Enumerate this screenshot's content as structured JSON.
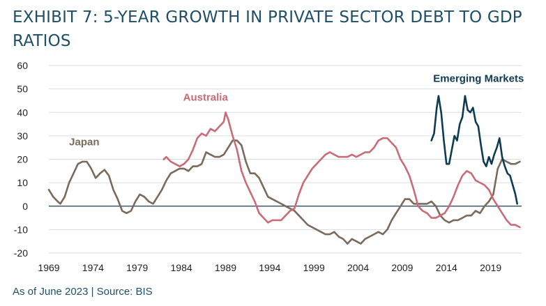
{
  "title": "EXHIBIT 7: 5-YEAR GROWTH IN PRIVATE SECTOR DEBT TO GDP RATIOS",
  "footnote": "As of June 2023 | Source: BIS",
  "chart_data": {
    "type": "line",
    "title": "EXHIBIT 7: 5-YEAR GROWTH IN PRIVATE SECTOR DEBT TO GDP RATIOS",
    "xlabel": "",
    "ylabel": "",
    "xlim": [
      1969,
      2022.5
    ],
    "ylim": [
      -20,
      60
    ],
    "x_ticks": [
      "1969",
      "1974",
      "1979",
      "1984",
      "1989",
      "1994",
      "1999",
      "2004",
      "2009",
      "2014",
      "2019"
    ],
    "y_ticks": [
      "60",
      "50",
      "40",
      "30",
      "20",
      "10",
      "0",
      "-10",
      "-20"
    ],
    "grid": "horizontal",
    "legend": "direct labels on lines",
    "series": [
      {
        "name": "Japan",
        "color": "#7a6a5c",
        "points": [
          [
            1969,
            7
          ],
          [
            1969.5,
            4
          ],
          [
            1970,
            2
          ],
          [
            1970.3,
            1
          ],
          [
            1970.8,
            4
          ],
          [
            1971.3,
            10
          ],
          [
            1971.8,
            14
          ],
          [
            1972.3,
            18
          ],
          [
            1972.8,
            19
          ],
          [
            1973.3,
            19
          ],
          [
            1973.8,
            16
          ],
          [
            1974.3,
            12
          ],
          [
            1974.8,
            14
          ],
          [
            1975.3,
            15.5
          ],
          [
            1975.8,
            13
          ],
          [
            1976.3,
            7
          ],
          [
            1976.8,
            3
          ],
          [
            1977.3,
            -2
          ],
          [
            1977.8,
            -3
          ],
          [
            1978.3,
            -2
          ],
          [
            1978.8,
            2
          ],
          [
            1979.3,
            5
          ],
          [
            1979.8,
            4
          ],
          [
            1980.3,
            2
          ],
          [
            1980.8,
            1
          ],
          [
            1981.3,
            4
          ],
          [
            1981.8,
            7
          ],
          [
            1982.3,
            11
          ],
          [
            1982.8,
            14
          ],
          [
            1983.3,
            15
          ],
          [
            1983.8,
            16
          ],
          [
            1984.3,
            16
          ],
          [
            1984.8,
            15
          ],
          [
            1985.3,
            17
          ],
          [
            1985.8,
            17
          ],
          [
            1986.3,
            18
          ],
          [
            1986.8,
            23
          ],
          [
            1987.3,
            22
          ],
          [
            1987.8,
            21
          ],
          [
            1988.3,
            21
          ],
          [
            1988.8,
            22
          ],
          [
            1989.3,
            25
          ],
          [
            1989.8,
            28
          ],
          [
            1990.3,
            28
          ],
          [
            1990.8,
            26
          ],
          [
            1991.3,
            19
          ],
          [
            1991.8,
            14
          ],
          [
            1992.3,
            14
          ],
          [
            1992.8,
            12
          ],
          [
            1993.3,
            8
          ],
          [
            1993.8,
            4
          ],
          [
            1994.3,
            3
          ],
          [
            1994.8,
            2
          ],
          [
            1995.3,
            1
          ],
          [
            1995.8,
            0
          ],
          [
            1996.3,
            -1
          ],
          [
            1996.8,
            -2
          ],
          [
            1997.3,
            -4
          ],
          [
            1997.8,
            -6
          ],
          [
            1998.3,
            -8
          ],
          [
            1998.8,
            -9
          ],
          [
            1999.3,
            -10
          ],
          [
            1999.8,
            -11
          ],
          [
            2000.3,
            -12
          ],
          [
            2000.8,
            -12
          ],
          [
            2001.3,
            -11
          ],
          [
            2001.8,
            -13
          ],
          [
            2002.3,
            -14
          ],
          [
            2002.8,
            -16
          ],
          [
            2003.3,
            -14
          ],
          [
            2003.8,
            -15
          ],
          [
            2004.3,
            -16
          ],
          [
            2004.8,
            -14
          ],
          [
            2005.3,
            -13
          ],
          [
            2005.8,
            -12
          ],
          [
            2006.3,
            -11
          ],
          [
            2006.8,
            -12
          ],
          [
            2007.3,
            -10
          ],
          [
            2007.8,
            -6
          ],
          [
            2008.3,
            -3
          ],
          [
            2008.8,
            0
          ],
          [
            2009.3,
            3
          ],
          [
            2009.8,
            3
          ],
          [
            2010.3,
            1
          ],
          [
            2010.8,
            1
          ],
          [
            2011.3,
            1
          ],
          [
            2011.8,
            1
          ],
          [
            2012.3,
            2
          ],
          [
            2012.8,
            0
          ],
          [
            2013.3,
            -4
          ],
          [
            2013.8,
            -6
          ],
          [
            2014.3,
            -7
          ],
          [
            2014.8,
            -6
          ],
          [
            2015.3,
            -6
          ],
          [
            2015.8,
            -5
          ],
          [
            2016.3,
            -4
          ],
          [
            2016.8,
            -4
          ],
          [
            2017.3,
            -2
          ],
          [
            2017.8,
            -3
          ],
          [
            2018.3,
            0
          ],
          [
            2018.8,
            2
          ],
          [
            2019.3,
            5
          ],
          [
            2019.8,
            16
          ],
          [
            2020.3,
            20
          ],
          [
            2020.8,
            19
          ],
          [
            2021.3,
            18
          ],
          [
            2021.8,
            18
          ],
          [
            2022.3,
            19
          ]
        ]
      },
      {
        "name": "Australia",
        "color": "#c96b78",
        "points": [
          [
            1982,
            20
          ],
          [
            1982.3,
            21
          ],
          [
            1982.8,
            19
          ],
          [
            1983.3,
            18
          ],
          [
            1983.8,
            17
          ],
          [
            1984.3,
            18
          ],
          [
            1984.8,
            20
          ],
          [
            1985.3,
            24
          ],
          [
            1985.8,
            29
          ],
          [
            1986.3,
            31
          ],
          [
            1986.8,
            30
          ],
          [
            1987.3,
            33
          ],
          [
            1987.8,
            32
          ],
          [
            1988.3,
            34
          ],
          [
            1988.8,
            36
          ],
          [
            1989,
            40
          ],
          [
            1989.3,
            37
          ],
          [
            1989.8,
            30
          ],
          [
            1990.3,
            24
          ],
          [
            1990.8,
            15
          ],
          [
            1991.3,
            10
          ],
          [
            1991.8,
            6
          ],
          [
            1992.3,
            2
          ],
          [
            1992.8,
            -3
          ],
          [
            1993.3,
            -5
          ],
          [
            1993.8,
            -7
          ],
          [
            1994.3,
            -6
          ],
          [
            1994.8,
            -6
          ],
          [
            1995.3,
            -6
          ],
          [
            1995.8,
            -4
          ],
          [
            1996.3,
            -2
          ],
          [
            1996.8,
            -1
          ],
          [
            1997.3,
            5
          ],
          [
            1997.8,
            10
          ],
          [
            1998.3,
            13
          ],
          [
            1998.8,
            16
          ],
          [
            1999.3,
            18
          ],
          [
            1999.8,
            20
          ],
          [
            2000.3,
            22
          ],
          [
            2000.8,
            23
          ],
          [
            2001.3,
            22
          ],
          [
            2001.8,
            21
          ],
          [
            2002.3,
            21
          ],
          [
            2002.8,
            21
          ],
          [
            2003.3,
            22
          ],
          [
            2003.8,
            21
          ],
          [
            2004.3,
            22
          ],
          [
            2004.8,
            23
          ],
          [
            2005.3,
            23
          ],
          [
            2005.8,
            25
          ],
          [
            2006.3,
            28
          ],
          [
            2006.8,
            29
          ],
          [
            2007.3,
            29
          ],
          [
            2007.8,
            27
          ],
          [
            2008.3,
            25
          ],
          [
            2008.8,
            20
          ],
          [
            2009.3,
            17
          ],
          [
            2009.8,
            13
          ],
          [
            2010.3,
            7
          ],
          [
            2010.8,
            0
          ],
          [
            2011.3,
            -2
          ],
          [
            2011.8,
            -3
          ],
          [
            2012.3,
            -5
          ],
          [
            2012.8,
            -5
          ],
          [
            2013.3,
            -4
          ],
          [
            2013.8,
            -3
          ],
          [
            2014.3,
            0
          ],
          [
            2014.8,
            4
          ],
          [
            2015.3,
            9
          ],
          [
            2015.8,
            13
          ],
          [
            2016.3,
            15
          ],
          [
            2016.8,
            14
          ],
          [
            2017.3,
            11
          ],
          [
            2017.8,
            10
          ],
          [
            2018.3,
            9
          ],
          [
            2018.8,
            7
          ],
          [
            2019.3,
            3
          ],
          [
            2019.8,
            0
          ],
          [
            2020.3,
            -3
          ],
          [
            2020.8,
            -6
          ],
          [
            2021.3,
            -8
          ],
          [
            2021.8,
            -8
          ],
          [
            2022.3,
            -9
          ]
        ]
      },
      {
        "name": "Emerging Markets",
        "color": "#0e3a52",
        "points": [
          [
            2012.3,
            28
          ],
          [
            2012.6,
            31
          ],
          [
            2012.9,
            42
          ],
          [
            2013.1,
            47
          ],
          [
            2013.4,
            40
          ],
          [
            2013.7,
            28
          ],
          [
            2014,
            18
          ],
          [
            2014.3,
            18
          ],
          [
            2014.6,
            24
          ],
          [
            2014.9,
            30
          ],
          [
            2015.2,
            28
          ],
          [
            2015.5,
            35
          ],
          [
            2015.8,
            38
          ],
          [
            2016.1,
            47
          ],
          [
            2016.4,
            41
          ],
          [
            2016.7,
            40
          ],
          [
            2017,
            42
          ],
          [
            2017.3,
            36
          ],
          [
            2017.6,
            34
          ],
          [
            2017.9,
            26
          ],
          [
            2018.2,
            19
          ],
          [
            2018.5,
            17
          ],
          [
            2018.8,
            21
          ],
          [
            2019.1,
            18
          ],
          [
            2019.4,
            22
          ],
          [
            2019.7,
            25
          ],
          [
            2020,
            29
          ],
          [
            2020.3,
            21
          ],
          [
            2020.6,
            17
          ],
          [
            2020.9,
            14
          ],
          [
            2021.2,
            13
          ],
          [
            2021.5,
            9
          ],
          [
            2021.8,
            5
          ],
          [
            2022,
            1
          ]
        ]
      }
    ],
    "labels": [
      {
        "text": "Japan",
        "x": 1971.3,
        "y": 26
      },
      {
        "text": "Australia",
        "x": 1984.2,
        "y": 45
      },
      {
        "text": "Emerging Markets",
        "x": 2012.5,
        "y": 53
      }
    ]
  }
}
